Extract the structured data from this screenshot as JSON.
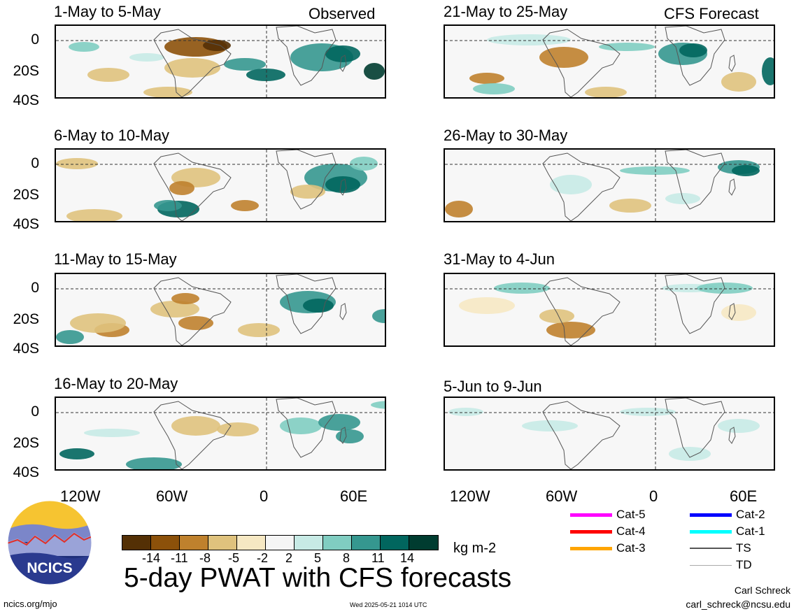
{
  "header": {
    "left_tag": "Observed",
    "right_tag": "CFS Forecast"
  },
  "panels_left": [
    {
      "title": "1-May to 5-May"
    },
    {
      "title": "6-May to 10-May"
    },
    {
      "title": "11-May to 15-May"
    },
    {
      "title": "16-May to 20-May"
    }
  ],
  "panels_right": [
    {
      "title": "21-May to 25-May"
    },
    {
      "title": "26-May to 30-May"
    },
    {
      "title": "31-May to 4-Jun"
    },
    {
      "title": "5-Jun to 9-Jun"
    }
  ],
  "y_labels": [
    "0",
    "20S",
    "40S"
  ],
  "x_labels": [
    "120W",
    "60W",
    "0",
    "60E"
  ],
  "colorbar": {
    "colors": [
      "#543005",
      "#8c510a",
      "#bf812d",
      "#dfc27d",
      "#f6e8c3",
      "#f5f5f5",
      "#c7eae5",
      "#80cdc1",
      "#35978f",
      "#01665e",
      "#003c30"
    ],
    "labels": [
      "-14",
      "-11",
      "-8",
      "-5",
      "-2",
      "2",
      "5",
      "8",
      "11",
      "14"
    ],
    "units": "kg m-2"
  },
  "legend": [
    {
      "label": "Cat-5",
      "color": "#ff00ff"
    },
    {
      "label": "Cat-4",
      "color": "#ff0000"
    },
    {
      "label": "Cat-3",
      "color": "#ffa500"
    },
    {
      "label": "Cat-2",
      "color": "#0000ff"
    },
    {
      "label": "Cat-1",
      "color": "#00ffff"
    },
    {
      "label": "TS",
      "color": "#555555"
    },
    {
      "label": "TD",
      "color": "#aaaaaa"
    }
  ],
  "main_title": "5-day PWAT with CFS forecasts",
  "logo_text": "NCICS",
  "footer": {
    "left": "ncics.org/mjo",
    "center": "Wed 2025-05-21 1014 UTC",
    "author": "Carl Schreck",
    "email": "carl_schreck@ncsu.edu"
  }
}
